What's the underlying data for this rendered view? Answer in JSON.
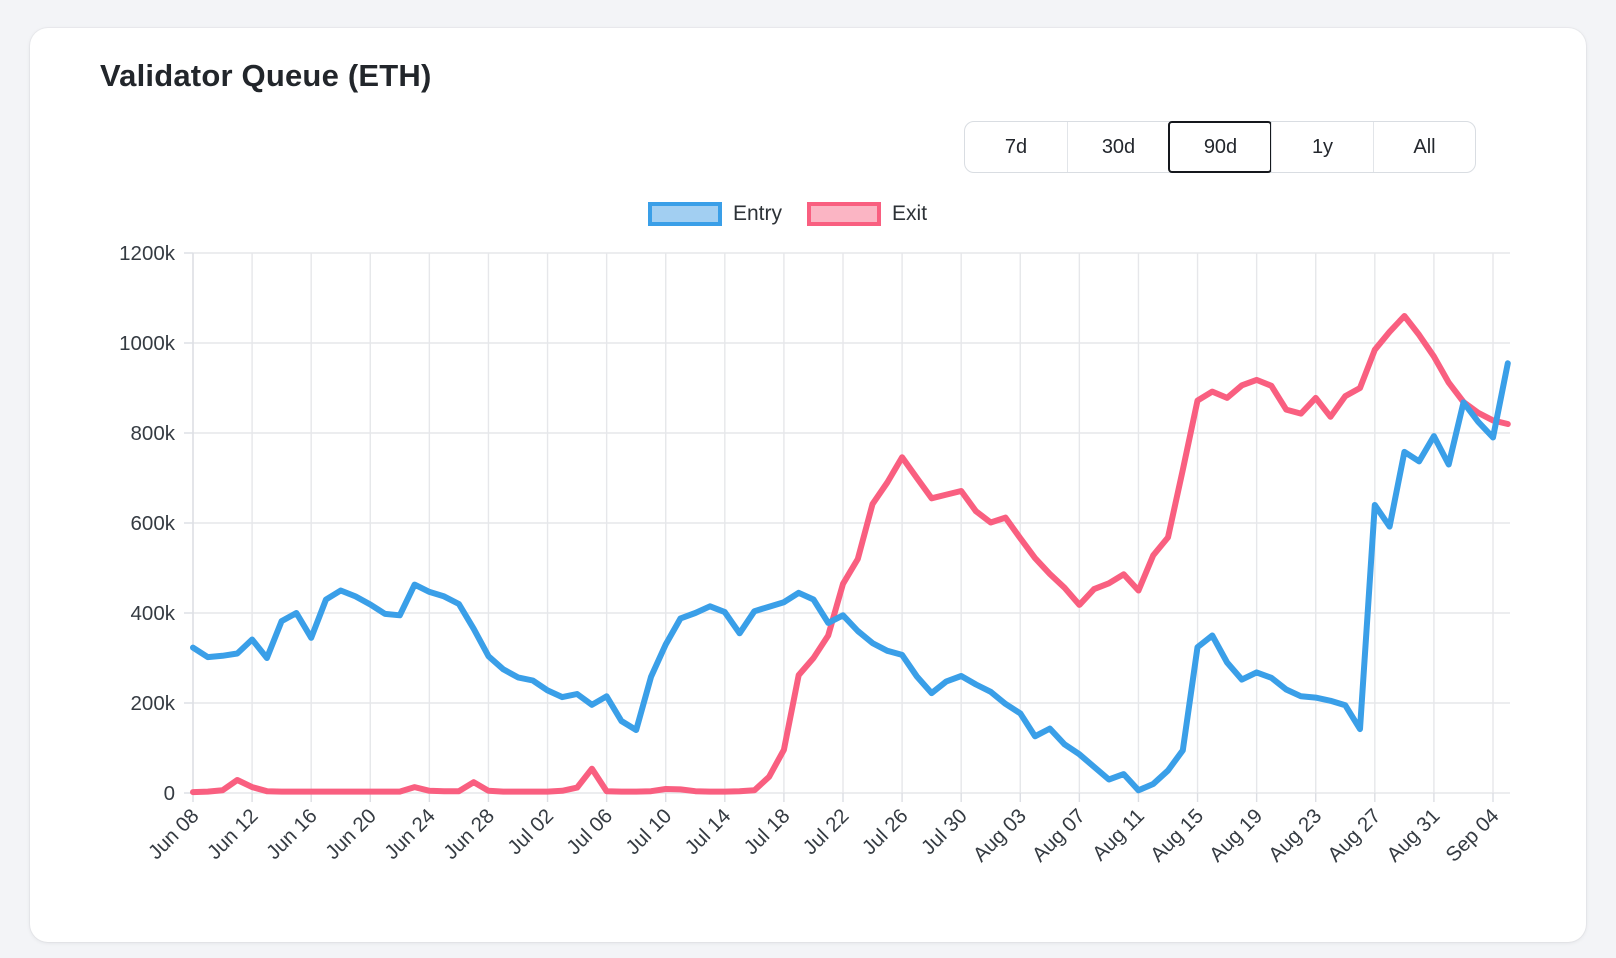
{
  "card": {
    "title": "Validator Queue (ETH)"
  },
  "range_selector": {
    "options": [
      "7d",
      "30d",
      "90d",
      "1y",
      "All"
    ],
    "selected": "90d"
  },
  "legend": {
    "items": [
      {
        "label": "Entry",
        "line": "#3a9fe8",
        "fill": "#a2cff2"
      },
      {
        "label": "Exit",
        "line": "#f95f80",
        "fill": "#fbb5c4"
      }
    ]
  },
  "colors": {
    "grid": "#e6e7ea",
    "axis_line": "#dcdee3",
    "axis_text": "#353b42",
    "title_text": "#22262b"
  },
  "chart_data": {
    "type": "line",
    "title": "Validator Queue (ETH)",
    "xlabel": "",
    "ylabel": "",
    "y_unit": "k (thousands of ETH)",
    "ylim": [
      0,
      1200
    ],
    "y_tick_labels": [
      "0",
      "200k",
      "400k",
      "600k",
      "800k",
      "1000k",
      "1200k"
    ],
    "grid": true,
    "legend_position": "top",
    "n_points": 90,
    "x_start": "Jun 08",
    "x_end": "Sep 05",
    "x_tick_every": 4,
    "x_tick_labels": [
      "Jun 08",
      "Jun 12",
      "Jun 16",
      "Jun 20",
      "Jun 24",
      "Jun 28",
      "Jul 02",
      "Jul 06",
      "Jul 10",
      "Jul 14",
      "Jul 18",
      "Jul 22",
      "Jul 26",
      "Jul 30",
      "Aug 03",
      "Aug 07",
      "Aug 11",
      "Aug 15",
      "Aug 19",
      "Aug 23",
      "Aug 27",
      "Aug 31",
      "Sep 04"
    ],
    "series": [
      {
        "name": "Entry",
        "color": "#3a9fe8",
        "values": [
          323,
          302,
          305,
          310,
          341,
          300,
          382,
          400,
          345,
          430,
          450,
          437,
          419,
          398,
          395,
          463,
          447,
          437,
          420,
          365,
          304,
          275,
          257,
          250,
          228,
          213,
          220,
          196,
          215,
          160,
          140,
          258,
          330,
          388,
          400,
          415,
          402,
          355,
          404,
          414,
          424,
          445,
          430,
          378,
          395,
          360,
          333,
          316,
          307,
          259,
          222,
          248,
          260,
          241,
          225,
          198,
          177,
          126,
          143,
          108,
          86,
          58,
          30,
          42,
          6,
          20,
          50,
          95,
          324,
          350,
          290,
          252,
          268,
          256,
          230,
          215,
          212,
          205,
          195,
          142,
          640,
          592,
          758,
          737,
          793,
          730,
          868,
          825,
          790,
          955
        ]
      },
      {
        "name": "Exit",
        "color": "#f95f80",
        "values": [
          2,
          3,
          6,
          29,
          13,
          4,
          3,
          3,
          3,
          3,
          3,
          3,
          3,
          3,
          3,
          13,
          5,
          4,
          4,
          24,
          5,
          3,
          3,
          3,
          3,
          5,
          12,
          54,
          4,
          3,
          3,
          4,
          9,
          8,
          4,
          3,
          3,
          4,
          6,
          36,
          96,
          262,
          300,
          350,
          465,
          520,
          642,
          690,
          746,
          700,
          655,
          663,
          671,
          626,
          601,
          612,
          566,
          522,
          487,
          456,
          418,
          453,
          466,
          486,
          450,
          528,
          568,
          718,
          872,
          892,
          878,
          906,
          918,
          905,
          852,
          843,
          878,
          836,
          882,
          900,
          985,
          1025,
          1060,
          1018,
          970,
          912,
          869,
          845,
          828,
          820
        ]
      }
    ]
  }
}
